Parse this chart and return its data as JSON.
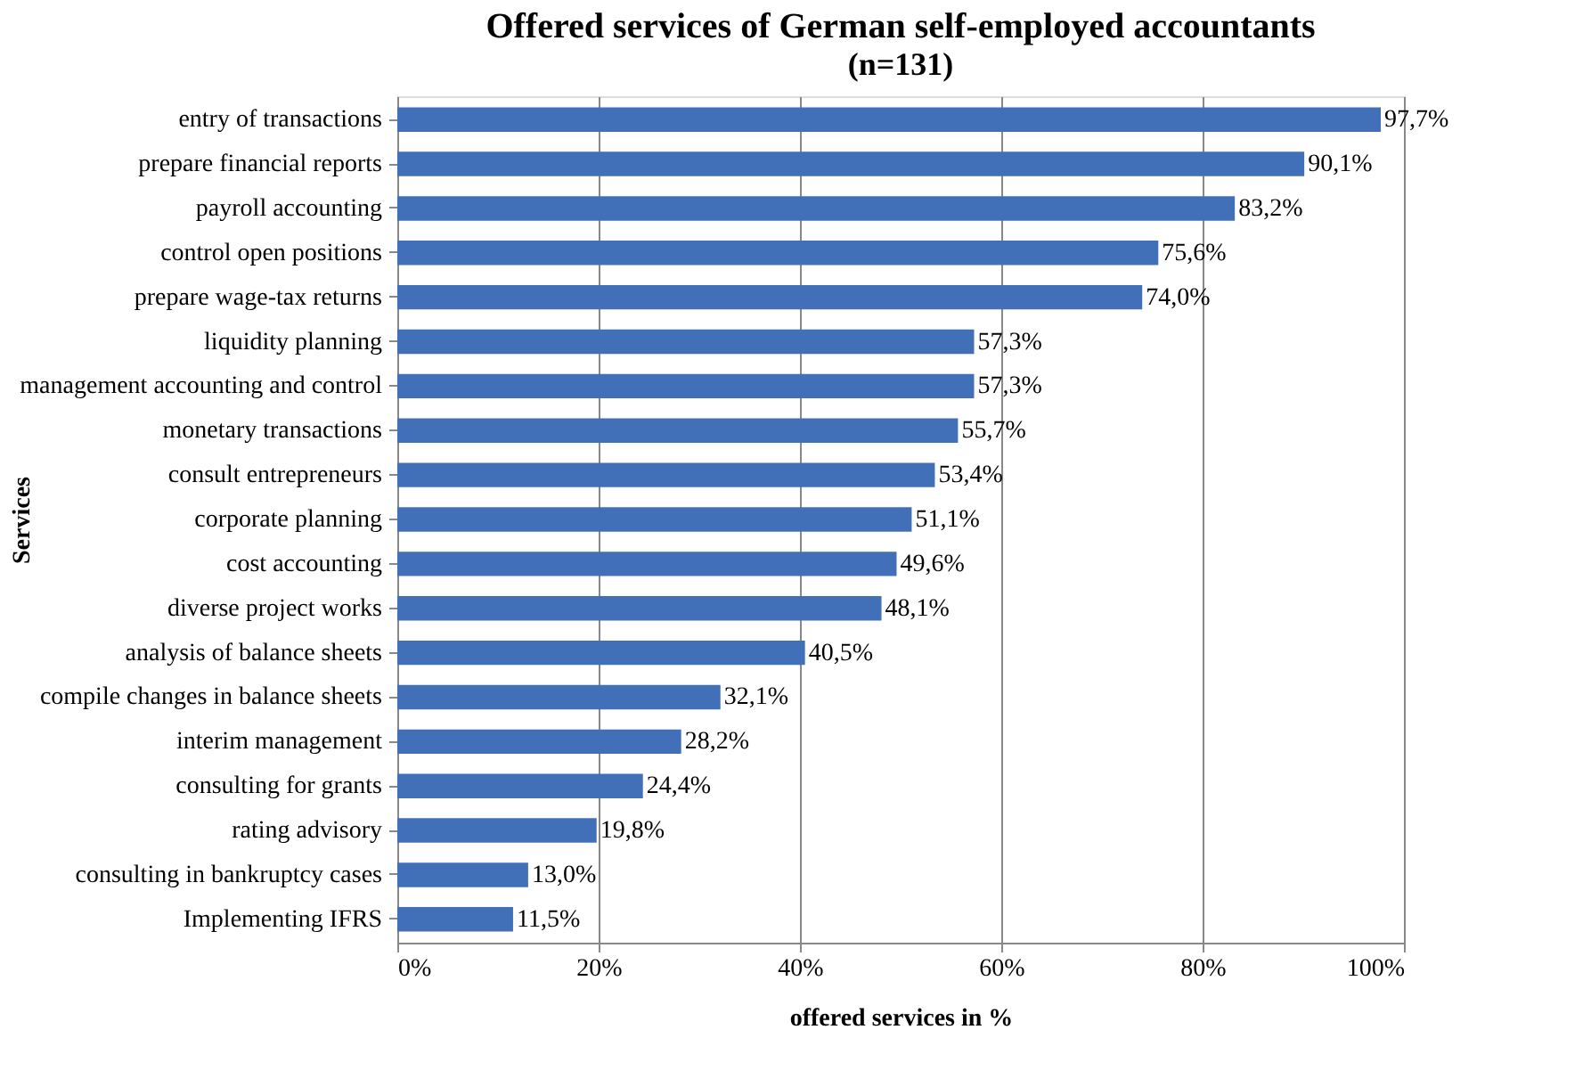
{
  "chart_data": {
    "type": "bar",
    "orientation": "horizontal",
    "title": "Offered services of German self-employed accountants",
    "subtitle": "(n=131)",
    "xlabel": "offered services in %",
    "ylabel": "Services",
    "categories": [
      "entry of transactions",
      "prepare financial reports",
      "payroll accounting",
      "control open positions",
      "prepare wage-tax returns",
      "liquidity planning",
      "management accounting and control",
      "monetary transactions",
      "consult entrepreneurs",
      "corporate planning",
      "cost accounting",
      "diverse project works",
      "analysis of balance sheets",
      "compile changes in balance sheets",
      "interim management",
      "consulting for grants",
      "rating advisory",
      "consulting in bankruptcy cases",
      "Implementing IFRS"
    ],
    "values": [
      97.7,
      90.1,
      83.2,
      75.6,
      74.0,
      57.3,
      57.3,
      55.7,
      53.4,
      51.1,
      49.6,
      48.1,
      40.5,
      32.1,
      28.2,
      24.4,
      19.8,
      13.0,
      11.5
    ],
    "value_labels": [
      "97,7%",
      "90,1%",
      "83,2%",
      "75,6%",
      "74,0%",
      "57,3%",
      "57,3%",
      "55,7%",
      "53,4%",
      "51,1%",
      "49,6%",
      "48,1%",
      "40,5%",
      "32,1%",
      "28,2%",
      "24,4%",
      "19,8%",
      "13,0%",
      "11,5%"
    ],
    "color": "#4270b8",
    "xlim": [
      0,
      100
    ],
    "xticks": [
      {
        "value": 0,
        "label": "0%"
      },
      {
        "value": 20,
        "label": "20%"
      },
      {
        "value": 40,
        "label": "40%"
      },
      {
        "value": 60,
        "label": "60%"
      },
      {
        "value": 80,
        "label": "80%"
      },
      {
        "value": 100,
        "label": "100%"
      }
    ],
    "grid": "x"
  }
}
